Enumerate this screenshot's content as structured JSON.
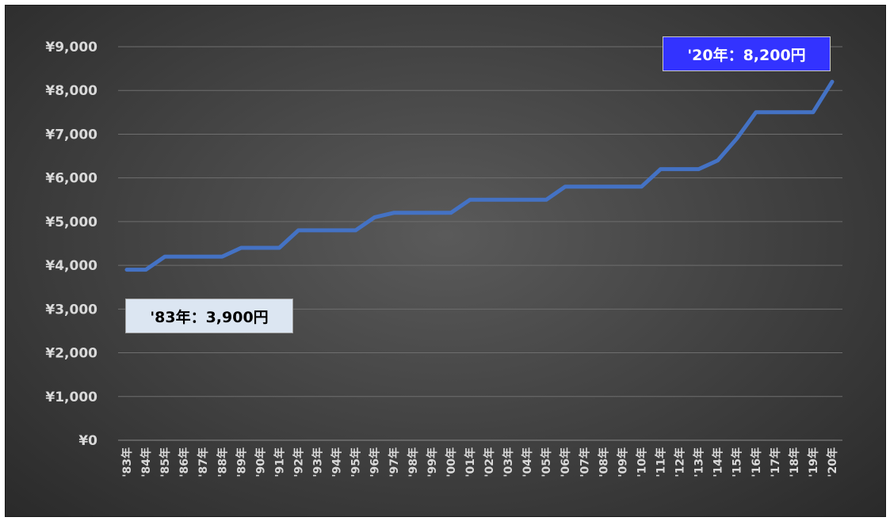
{
  "chart_data": {
    "type": "line",
    "title": "",
    "xlabel": "",
    "ylabel": "",
    "categories": [
      "'83年",
      "'84年",
      "'85年",
      "'86年",
      "'87年",
      "'88年",
      "'89年",
      "'90年",
      "'91年",
      "'92年",
      "'93年",
      "'94年",
      "'95年",
      "'96年",
      "'97年",
      "'98年",
      "'99年",
      "'00年",
      "'01年",
      "'02年",
      "'03年",
      "'04年",
      "'05年",
      "'06年",
      "'07年",
      "'08年",
      "'09年",
      "'10年",
      "'11年",
      "'12年",
      "'13年",
      "'14年",
      "'15年",
      "'16年",
      "'17年",
      "'18年",
      "'19年",
      "'20年"
    ],
    "series": [
      {
        "values": [
          3900,
          3900,
          4200,
          4200,
          4200,
          4200,
          4400,
          4400,
          4400,
          4800,
          4800,
          4800,
          4800,
          5100,
          5200,
          5200,
          5200,
          5200,
          5500,
          5500,
          5500,
          5500,
          5500,
          5800,
          5800,
          5800,
          5800,
          5800,
          6200,
          6200,
          6200,
          6400,
          6900,
          7500,
          7500,
          7500,
          7500,
          8200
        ],
        "color": "#4472c4"
      }
    ],
    "ylim": [
      0,
      9000
    ],
    "ytick_values": [
      0,
      1000,
      2000,
      3000,
      4000,
      5000,
      6000,
      7000,
      8000,
      9000
    ],
    "ytick_labels": [
      "¥0",
      "¥1,000",
      "¥2,000",
      "¥3,000",
      "¥4,000",
      "¥5,000",
      "¥6,000",
      "¥7,000",
      "¥8,000",
      "¥9,000"
    ],
    "grid": true,
    "legend": "none",
    "annotations": [
      {
        "id": "end",
        "text": "'20年：8,200円",
        "background": "#3333ff",
        "color": "#ffffff"
      },
      {
        "id": "start",
        "text": "'83年：3,900円",
        "background": "#dce6f2",
        "color": "#000000"
      }
    ]
  }
}
